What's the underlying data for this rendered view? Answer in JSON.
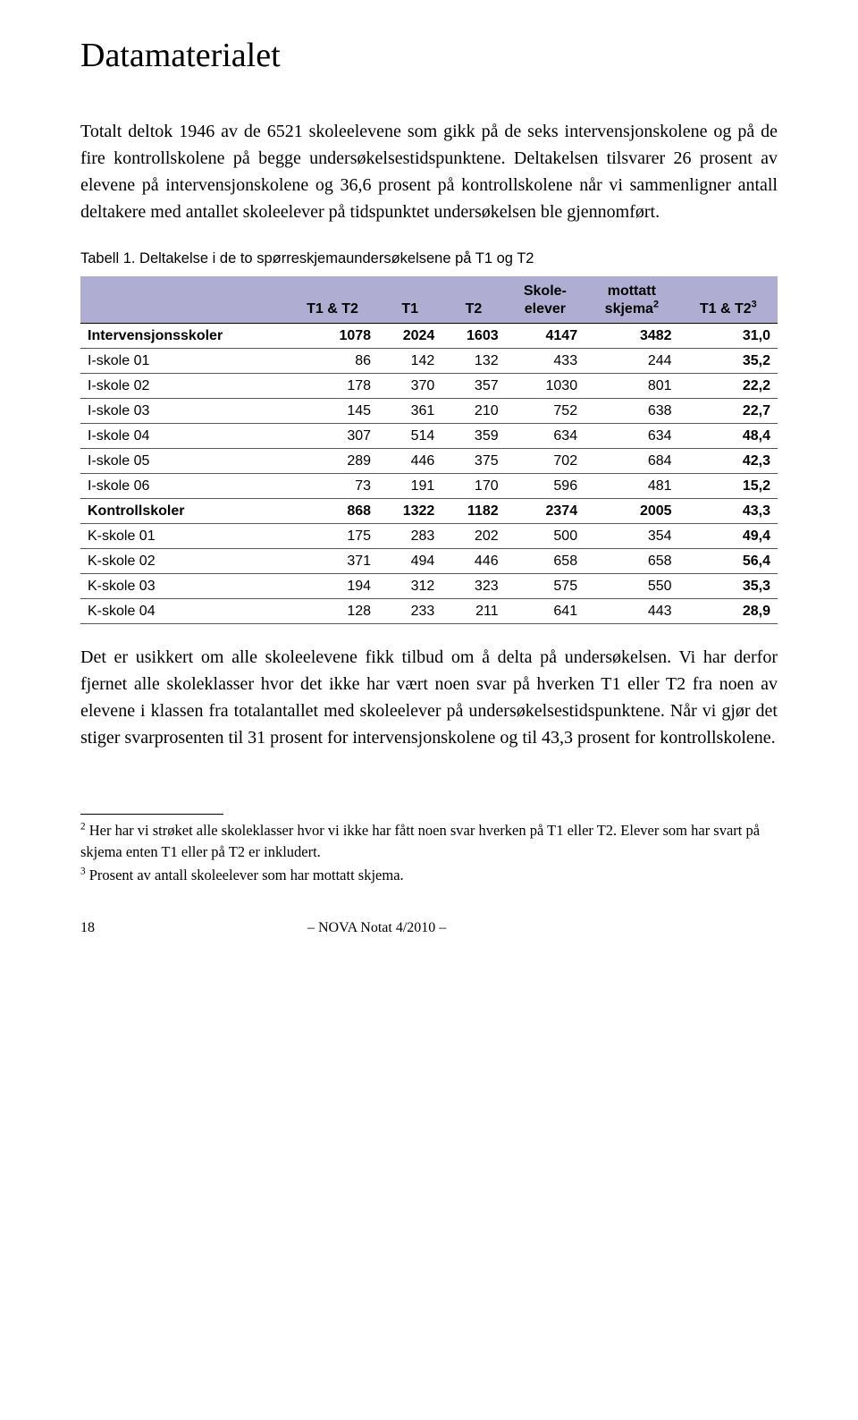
{
  "heading": "Datamaterialet",
  "para1": "Totalt deltok 1946 av de 6521 skoleelevene som gikk på de seks intervensjonskolene og på de fire kontrollskolene på begge undersøkelsestidspunktene. Deltakelsen tilsvarer 26 prosent av elevene på intervensjonskolene og 36,6 prosent på kontrollskolene når vi sammenligner antall deltakere med antallet skoleelever på tidspunktet undersøkelsen ble gjennomført.",
  "table": {
    "caption": "Tabell 1. Deltakelse i de to spørreskjemaundersøkelsene på T1 og T2",
    "header_bg": "#b0add2",
    "columns": {
      "c0": "",
      "c1": "T1 & T2",
      "c2": "T1",
      "c3": "T2",
      "c4_l1": "Skole-",
      "c4_l2": "elever",
      "c5_l1": "mottatt",
      "c5_l2": "skjema",
      "c5_sup": "2",
      "c6": "T1 & T2",
      "c6_sup": "3"
    },
    "rows": [
      {
        "bold": true,
        "c": [
          "Intervensjonsskoler",
          "1078",
          "2024",
          "1603",
          "4147",
          "3482",
          "31,0"
        ]
      },
      {
        "bold": false,
        "c": [
          "I-skole 01",
          "86",
          "142",
          "132",
          "433",
          "244",
          "35,2"
        ]
      },
      {
        "bold": false,
        "c": [
          "I-skole 02",
          "178",
          "370",
          "357",
          "1030",
          "801",
          "22,2"
        ]
      },
      {
        "bold": false,
        "c": [
          "I-skole 03",
          "145",
          "361",
          "210",
          "752",
          "638",
          "22,7"
        ]
      },
      {
        "bold": false,
        "c": [
          "I-skole 04",
          "307",
          "514",
          "359",
          "634",
          "634",
          "48,4"
        ]
      },
      {
        "bold": false,
        "c": [
          "I-skole 05",
          "289",
          "446",
          "375",
          "702",
          "684",
          "42,3"
        ]
      },
      {
        "bold": false,
        "c": [
          "I-skole 06",
          "73",
          "191",
          "170",
          "596",
          "481",
          "15,2"
        ]
      },
      {
        "bold": true,
        "c": [
          "Kontrollskoler",
          "868",
          "1322",
          "1182",
          "2374",
          "2005",
          "43,3"
        ]
      },
      {
        "bold": false,
        "c": [
          "K-skole 01",
          "175",
          "283",
          "202",
          "500",
          "354",
          "49,4"
        ]
      },
      {
        "bold": false,
        "c": [
          "K-skole 02",
          "371",
          "494",
          "446",
          "658",
          "658",
          "56,4"
        ]
      },
      {
        "bold": false,
        "c": [
          "K-skole 03",
          "194",
          "312",
          "323",
          "575",
          "550",
          "35,3"
        ]
      },
      {
        "bold": false,
        "c": [
          "K-skole 04",
          "128",
          "233",
          "211",
          "641",
          "443",
          "28,9"
        ]
      }
    ]
  },
  "para2": "Det er usikkert om alle skoleelevene fikk tilbud om å delta på undersøkelsen. Vi har derfor fjernet alle skoleklasser hvor det ikke har vært noen svar på hverken T1 eller T2 fra noen av elevene i klassen fra totalantallet med skoleelever på undersøkelsestidspunktene. Når vi gjør det stiger svarprosenten til 31 prosent for intervensjonskolene og til 43,3 prosent for kontrollskolene.",
  "footnotes": {
    "f2_sup": "2",
    "f2": " Her har vi strøket alle skoleklasser hvor vi ikke har fått noen svar hverken på T1 eller T2. Elever som har svart på skjema enten T1 eller på T2 er inkludert.",
    "f3_sup": "3",
    "f3": " Prosent av antall skoleelever som har mottatt skjema."
  },
  "footer": {
    "page": "18",
    "center": "– NOVA Notat 4/2010 –"
  }
}
